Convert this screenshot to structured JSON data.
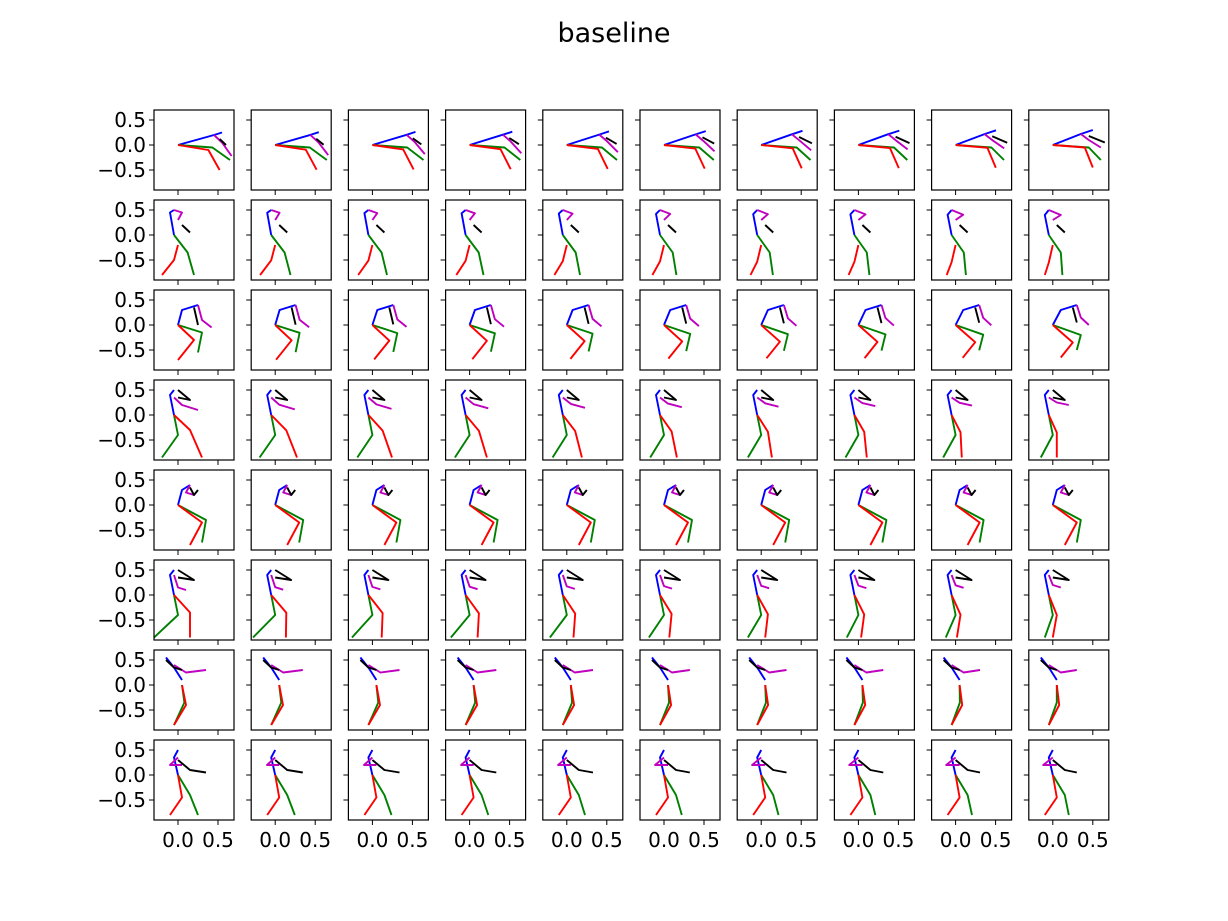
{
  "title": "baseline",
  "colors": {
    "blue": "#0000ff",
    "magenta": "#bf00bf",
    "black": "#000000",
    "green": "#008000",
    "red": "#ff0000"
  },
  "chart_data": {
    "type": "line",
    "title": "baseline",
    "grid": false,
    "xlim": [
      -0.3,
      0.7
    ],
    "ylim": [
      -0.9,
      0.7
    ],
    "yticks": [
      0.5,
      0.0,
      -0.5
    ],
    "ytick_labels": [
      "0.5",
      "0.0",
      "−0.5"
    ],
    "xticks": [
      0.0,
      0.5
    ],
    "xtick_labels": [
      "0.0",
      "0.5"
    ],
    "rows": 8,
    "cols": 10,
    "series": [
      {
        "color": "blue",
        "points": [
          [
            0.0,
            0.0
          ],
          [
            0.45,
            0.2
          ],
          [
            0.55,
            0.25
          ]
        ],
        "end": [
          [
            0.0,
            0.0
          ],
          [
            0.35,
            0.22
          ],
          [
            0.5,
            0.3
          ]
        ]
      },
      {
        "color": "magenta",
        "points": [
          [
            0.45,
            0.2
          ],
          [
            0.55,
            0.05
          ],
          [
            0.67,
            -0.22
          ]
        ],
        "end": [
          [
            0.35,
            0.22
          ],
          [
            0.45,
            0.1
          ],
          [
            0.6,
            -0.05
          ]
        ]
      },
      {
        "color": "black",
        "points": [
          [
            0.52,
            0.12
          ],
          [
            0.6,
            0.0
          ]
        ],
        "end": [
          [
            0.45,
            0.18
          ],
          [
            0.65,
            0.05
          ]
        ]
      },
      {
        "color": "green",
        "points": [
          [
            0.0,
            0.0
          ],
          [
            0.43,
            -0.05
          ],
          [
            0.65,
            -0.3
          ]
        ],
        "end": [
          [
            0.0,
            0.0
          ],
          [
            0.45,
            -0.05
          ],
          [
            0.6,
            -0.3
          ]
        ]
      },
      {
        "color": "red",
        "points": [
          [
            0.0,
            0.0
          ],
          [
            0.38,
            -0.1
          ],
          [
            0.52,
            -0.5
          ]
        ],
        "end": [
          [
            0.0,
            0.0
          ],
          [
            0.4,
            -0.05
          ],
          [
            0.5,
            -0.45
          ]
        ]
      },
      {
        "color": "blue",
        "points": [
          [
            -0.05,
            0.5
          ],
          [
            -0.1,
            0.45
          ],
          [
            -0.05,
            0.0
          ]
        ],
        "end": [
          [
            -0.05,
            0.5
          ],
          [
            -0.1,
            0.4
          ],
          [
            -0.05,
            0.0
          ]
        ]
      },
      {
        "color": "magenta",
        "points": [
          [
            -0.05,
            0.5
          ],
          [
            0.05,
            0.45
          ],
          [
            0.0,
            0.3
          ]
        ],
        "end": [
          [
            -0.05,
            0.5
          ],
          [
            0.1,
            0.4
          ],
          [
            0.0,
            0.3
          ]
        ]
      },
      {
        "color": "black",
        "points": [
          [
            0.05,
            0.2
          ],
          [
            0.15,
            0.05
          ]
        ],
        "end": [
          [
            0.05,
            0.2
          ],
          [
            0.15,
            0.05
          ]
        ]
      },
      {
        "color": "green",
        "points": [
          [
            -0.05,
            0.0
          ],
          [
            0.12,
            -0.35
          ],
          [
            0.2,
            -0.8
          ]
        ],
        "end": [
          [
            -0.05,
            0.0
          ],
          [
            0.1,
            -0.35
          ],
          [
            0.12,
            -0.8
          ]
        ]
      },
      {
        "color": "red",
        "points": [
          [
            0.0,
            -0.2
          ],
          [
            -0.05,
            -0.5
          ],
          [
            -0.2,
            -0.8
          ]
        ],
        "end": [
          [
            0.0,
            -0.2
          ],
          [
            -0.05,
            -0.55
          ],
          [
            -0.1,
            -0.8
          ]
        ]
      },
      {
        "color": "blue",
        "points": [
          [
            0.0,
            0.0
          ],
          [
            0.05,
            0.3
          ],
          [
            0.25,
            0.4
          ]
        ],
        "end": [
          [
            0.0,
            0.0
          ],
          [
            0.1,
            0.3
          ],
          [
            0.3,
            0.4
          ]
        ]
      },
      {
        "color": "magenta",
        "points": [
          [
            0.25,
            0.4
          ],
          [
            0.3,
            0.1
          ],
          [
            0.42,
            -0.05
          ]
        ],
        "end": [
          [
            0.3,
            0.4
          ],
          [
            0.35,
            0.15
          ],
          [
            0.45,
            0.0
          ]
        ]
      },
      {
        "color": "black",
        "points": [
          [
            0.2,
            0.35
          ],
          [
            0.25,
            0.0
          ]
        ],
        "end": [
          [
            0.25,
            0.35
          ],
          [
            0.3,
            0.05
          ]
        ]
      },
      {
        "color": "green",
        "points": [
          [
            0.0,
            0.0
          ],
          [
            0.3,
            -0.15
          ],
          [
            0.25,
            -0.55
          ]
        ],
        "end": [
          [
            0.0,
            0.0
          ],
          [
            0.35,
            -0.2
          ],
          [
            0.3,
            -0.5
          ]
        ]
      },
      {
        "color": "red",
        "points": [
          [
            0.0,
            0.0
          ],
          [
            0.2,
            -0.3
          ],
          [
            0.0,
            -0.7
          ]
        ],
        "end": [
          [
            0.0,
            0.0
          ],
          [
            0.25,
            -0.35
          ],
          [
            0.1,
            -0.65
          ]
        ]
      },
      {
        "color": "blue",
        "points": [
          [
            -0.05,
            0.5
          ],
          [
            -0.1,
            0.4
          ],
          [
            -0.05,
            0.0
          ]
        ],
        "end": [
          [
            -0.05,
            0.5
          ],
          [
            -0.1,
            0.4
          ],
          [
            -0.05,
            0.0
          ]
        ]
      },
      {
        "color": "magenta",
        "points": [
          [
            -0.05,
            0.35
          ],
          [
            0.05,
            0.2
          ],
          [
            0.25,
            0.1
          ]
        ],
        "end": [
          [
            -0.05,
            0.35
          ],
          [
            0.05,
            0.25
          ],
          [
            0.2,
            0.2
          ]
        ]
      },
      {
        "color": "black",
        "points": [
          [
            0.0,
            0.5
          ],
          [
            0.15,
            0.3
          ],
          [
            0.0,
            0.35
          ]
        ],
        "end": [
          [
            0.0,
            0.5
          ],
          [
            0.15,
            0.3
          ],
          [
            0.0,
            0.35
          ]
        ]
      },
      {
        "color": "green",
        "points": [
          [
            -0.05,
            0.0
          ],
          [
            0.0,
            -0.4
          ],
          [
            -0.2,
            -0.85
          ]
        ],
        "end": [
          [
            -0.05,
            0.0
          ],
          [
            0.0,
            -0.4
          ],
          [
            -0.15,
            -0.85
          ]
        ]
      },
      {
        "color": "red",
        "points": [
          [
            -0.05,
            0.0
          ],
          [
            0.15,
            -0.3
          ],
          [
            0.3,
            -0.85
          ]
        ],
        "end": [
          [
            -0.05,
            0.0
          ],
          [
            0.05,
            -0.35
          ],
          [
            0.05,
            -0.85
          ]
        ]
      },
      {
        "color": "blue",
        "points": [
          [
            0.0,
            0.0
          ],
          [
            0.05,
            0.3
          ],
          [
            0.15,
            0.4
          ]
        ],
        "end": [
          [
            0.0,
            0.0
          ],
          [
            0.05,
            0.3
          ],
          [
            0.15,
            0.4
          ]
        ]
      },
      {
        "color": "magenta",
        "points": [
          [
            0.15,
            0.4
          ],
          [
            0.1,
            0.25
          ],
          [
            0.2,
            0.2
          ]
        ],
        "end": [
          [
            0.15,
            0.4
          ],
          [
            0.1,
            0.25
          ],
          [
            0.2,
            0.2
          ]
        ]
      },
      {
        "color": "black",
        "points": [
          [
            0.15,
            0.35
          ],
          [
            0.2,
            0.2
          ],
          [
            0.25,
            0.3
          ]
        ],
        "end": [
          [
            0.15,
            0.35
          ],
          [
            0.2,
            0.2
          ],
          [
            0.25,
            0.3
          ]
        ]
      },
      {
        "color": "green",
        "points": [
          [
            0.0,
            0.0
          ],
          [
            0.35,
            -0.3
          ],
          [
            0.3,
            -0.75
          ]
        ],
        "end": [
          [
            0.0,
            0.0
          ],
          [
            0.35,
            -0.3
          ],
          [
            0.3,
            -0.75
          ]
        ]
      },
      {
        "color": "red",
        "points": [
          [
            0.0,
            0.0
          ],
          [
            0.3,
            -0.35
          ],
          [
            0.15,
            -0.8
          ]
        ],
        "end": [
          [
            0.0,
            0.0
          ],
          [
            0.3,
            -0.35
          ],
          [
            0.15,
            -0.8
          ]
        ]
      },
      {
        "color": "blue",
        "points": [
          [
            -0.05,
            0.5
          ],
          [
            -0.1,
            0.4
          ],
          [
            -0.05,
            0.0
          ]
        ],
        "end": [
          [
            -0.05,
            0.5
          ],
          [
            -0.1,
            0.4
          ],
          [
            -0.05,
            0.0
          ]
        ]
      },
      {
        "color": "magenta",
        "points": [
          [
            -0.05,
            0.4
          ],
          [
            0.0,
            0.15
          ],
          [
            0.1,
            0.1
          ]
        ],
        "end": [
          [
            -0.05,
            0.4
          ],
          [
            0.0,
            0.2
          ],
          [
            0.1,
            0.15
          ]
        ]
      },
      {
        "color": "black",
        "points": [
          [
            0.0,
            0.5
          ],
          [
            0.2,
            0.3
          ],
          [
            0.0,
            0.35
          ]
        ],
        "end": [
          [
            0.0,
            0.5
          ],
          [
            0.2,
            0.3
          ],
          [
            0.0,
            0.35
          ]
        ]
      },
      {
        "color": "green",
        "points": [
          [
            -0.05,
            0.0
          ],
          [
            0.0,
            -0.4
          ],
          [
            -0.3,
            -0.85
          ]
        ],
        "end": [
          [
            -0.05,
            0.0
          ],
          [
            0.0,
            -0.4
          ],
          [
            -0.1,
            -0.85
          ]
        ]
      },
      {
        "color": "red",
        "points": [
          [
            -0.05,
            0.0
          ],
          [
            0.15,
            -0.35
          ],
          [
            0.15,
            -0.85
          ]
        ],
        "end": [
          [
            -0.05,
            0.0
          ],
          [
            0.05,
            -0.4
          ],
          [
            0.0,
            -0.85
          ]
        ]
      },
      {
        "color": "blue",
        "points": [
          [
            -0.15,
            0.55
          ],
          [
            -0.05,
            0.35
          ],
          [
            0.05,
            0.1
          ]
        ],
        "end": [
          [
            -0.15,
            0.55
          ],
          [
            -0.05,
            0.35
          ],
          [
            0.05,
            0.1
          ]
        ]
      },
      {
        "color": "magenta",
        "points": [
          [
            -0.05,
            0.4
          ],
          [
            0.1,
            0.25
          ],
          [
            0.35,
            0.3
          ]
        ],
        "end": [
          [
            -0.05,
            0.4
          ],
          [
            0.1,
            0.25
          ],
          [
            0.3,
            0.3
          ]
        ]
      },
      {
        "color": "black",
        "points": [
          [
            -0.15,
            0.5
          ],
          [
            -0.05,
            0.35
          ],
          [
            0.05,
            0.3
          ]
        ],
        "end": [
          [
            -0.15,
            0.5
          ],
          [
            -0.05,
            0.35
          ],
          [
            0.05,
            0.3
          ]
        ]
      },
      {
        "color": "green",
        "points": [
          [
            0.05,
            0.0
          ],
          [
            0.08,
            -0.35
          ],
          [
            -0.05,
            -0.8
          ]
        ],
        "end": [
          [
            0.05,
            0.0
          ],
          [
            0.05,
            -0.35
          ],
          [
            -0.05,
            -0.8
          ]
        ]
      },
      {
        "color": "red",
        "points": [
          [
            0.05,
            0.0
          ],
          [
            0.1,
            -0.4
          ],
          [
            -0.05,
            -0.8
          ]
        ],
        "end": [
          [
            0.05,
            0.0
          ],
          [
            0.08,
            -0.4
          ],
          [
            -0.05,
            -0.8
          ]
        ]
      },
      {
        "color": "blue",
        "points": [
          [
            0.0,
            0.5
          ],
          [
            -0.05,
            0.35
          ],
          [
            0.0,
            0.0
          ]
        ],
        "end": [
          [
            0.0,
            0.5
          ],
          [
            -0.05,
            0.35
          ],
          [
            0.0,
            0.0
          ]
        ]
      },
      {
        "color": "magenta",
        "points": [
          [
            0.0,
            0.35
          ],
          [
            -0.1,
            0.2
          ],
          [
            0.05,
            0.2
          ]
        ],
        "end": [
          [
            0.0,
            0.35
          ],
          [
            -0.12,
            0.2
          ],
          [
            0.05,
            0.2
          ]
        ]
      },
      {
        "color": "black",
        "points": [
          [
            0.0,
            0.3
          ],
          [
            0.15,
            0.1
          ],
          [
            0.35,
            0.05
          ]
        ],
        "end": [
          [
            0.0,
            0.3
          ],
          [
            0.15,
            0.1
          ],
          [
            0.3,
            0.05
          ]
        ]
      },
      {
        "color": "green",
        "points": [
          [
            0.0,
            0.0
          ],
          [
            0.15,
            -0.4
          ],
          [
            0.25,
            -0.8
          ]
        ],
        "end": [
          [
            0.0,
            0.0
          ],
          [
            0.15,
            -0.4
          ],
          [
            0.2,
            -0.8
          ]
        ]
      },
      {
        "color": "red",
        "points": [
          [
            0.0,
            0.0
          ],
          [
            0.05,
            -0.45
          ],
          [
            -0.1,
            -0.8
          ]
        ],
        "end": [
          [
            0.0,
            0.0
          ],
          [
            0.05,
            -0.45
          ],
          [
            -0.1,
            -0.8
          ]
        ]
      }
    ]
  }
}
